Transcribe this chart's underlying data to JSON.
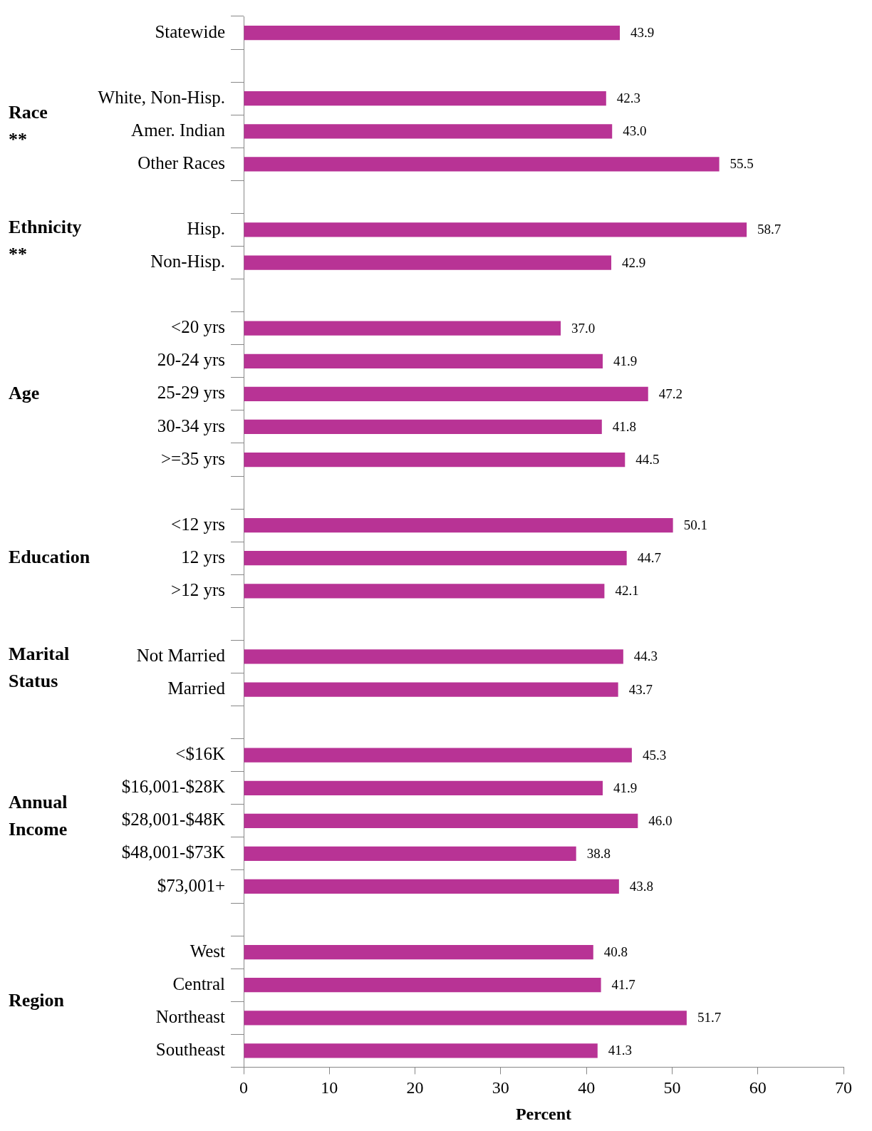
{
  "chart_data": {
    "type": "bar",
    "orientation": "horizontal",
    "xlabel": "Percent",
    "categories": [
      "Statewide",
      null,
      "White, Non-Hisp.",
      "Amer. Indian",
      "Other Races",
      null,
      "Hisp.",
      "Non-Hisp.",
      null,
      "<20 yrs",
      "20-24 yrs",
      "25-29 yrs",
      "30-34 yrs",
      ">=35 yrs",
      null,
      "<12 yrs",
      "12 yrs",
      ">12 yrs",
      null,
      "Not Married",
      "Married",
      null,
      "<$16K",
      "$16,001-$28K",
      "$28,001-$48K",
      "$48,001-$73K",
      "$73,001+",
      null,
      "West",
      "Central",
      "Northeast",
      "Southeast"
    ],
    "values": [
      43.9,
      null,
      42.3,
      43.0,
      55.5,
      null,
      58.7,
      42.9,
      null,
      37.0,
      41.9,
      47.2,
      41.8,
      44.5,
      null,
      50.1,
      44.7,
      42.1,
      null,
      44.3,
      43.7,
      null,
      45.3,
      41.9,
      46.0,
      38.8,
      43.8,
      null,
      40.8,
      41.7,
      51.7,
      41.3
    ],
    "value_labels": [
      "43.9",
      null,
      "42.3",
      "43.0",
      "55.5",
      null,
      "58.7",
      "42.9",
      null,
      "37.0",
      "41.9",
      "47.2",
      "41.8",
      "44.5",
      null,
      "50.1",
      "44.7",
      "42.1",
      null,
      "44.3",
      "43.7",
      null,
      "45.3",
      "41.9",
      "46.0",
      "38.8",
      "43.8",
      null,
      "40.8",
      "41.7",
      "51.7",
      "41.3"
    ],
    "color": "#b83395",
    "xlim": [
      0,
      70
    ],
    "xticks": [
      0,
      10,
      20,
      30,
      40,
      50,
      60,
      70
    ],
    "annotations": [
      "Race\n**",
      "Ethnicity\n**",
      "Age",
      "Education",
      "Marital\nStatus",
      "Annual\nIncome",
      "Region"
    ],
    "grid": false,
    "legend": false
  }
}
